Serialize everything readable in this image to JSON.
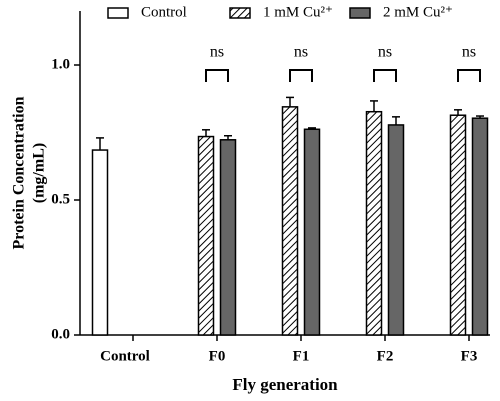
{
  "chart_data": {
    "type": "bar",
    "x_label": "Fly generation",
    "y_label": [
      "Protein Concentration",
      "(mg/mL)"
    ],
    "categories": [
      "Control",
      "F0",
      "F1",
      "F2",
      "F3"
    ],
    "series": [
      {
        "name": "Control",
        "color": "#ffffff",
        "hatch": false,
        "values": [
          0.685,
          null,
          null,
          null,
          null
        ],
        "errors": [
          0.045,
          null,
          null,
          null,
          null
        ]
      },
      {
        "name": "1 mM Cu²⁺",
        "color": "#ffffff",
        "hatch": true,
        "values": [
          null,
          0.735,
          0.845,
          0.827,
          0.814
        ],
        "errors": [
          null,
          0.025,
          0.035,
          0.04,
          0.02
        ]
      },
      {
        "name": "2 mM Cu²⁺",
        "color": "#666666",
        "hatch": false,
        "values": [
          null,
          0.723,
          0.762,
          0.778,
          0.803
        ],
        "errors": [
          null,
          0.015,
          0.005,
          0.03,
          0.008
        ]
      }
    ],
    "significance": [
      null,
      "ns",
      "ns",
      "ns",
      "ns"
    ],
    "ylim": [
      0,
      1.2
    ],
    "yticks": [
      {
        "value": 0,
        "label": "0.0"
      },
      0.5,
      {
        "value": 1,
        "label": "1.0"
      }
    ],
    "grid": false
  }
}
